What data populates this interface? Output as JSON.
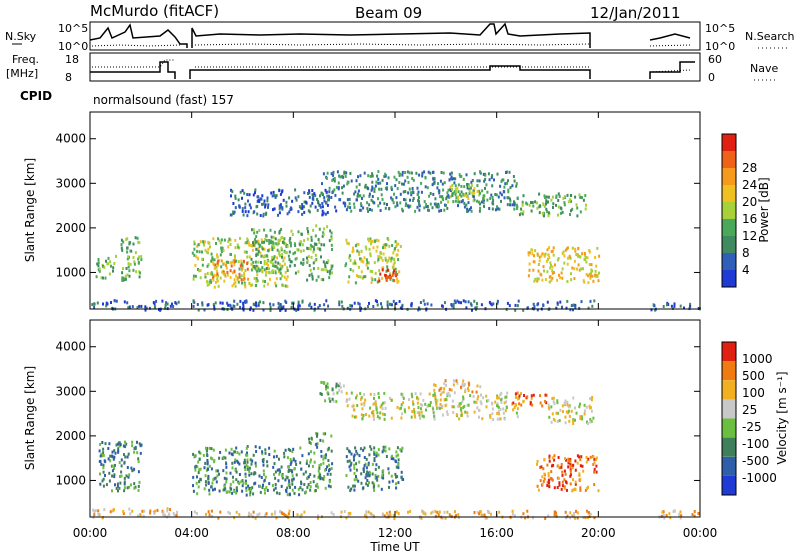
{
  "header": {
    "station": "McMurdo (fitACF)",
    "beam": "Beam 09",
    "date": "12/Jan/2011",
    "cpid_label": "CPID",
    "cpid_value": "normalsound (fast) 157"
  },
  "top_panels": {
    "nsky_label": "N.Sky",
    "nsky_ticks": [
      "10^5",
      "10^0"
    ],
    "nsearch_label": "N.Search",
    "nsearch_ticks": [
      "10^5",
      "10^0"
    ],
    "freq_label_line1": "Freq.",
    "freq_label_line2": "[MHz]",
    "freq_ticks": [
      "18",
      "8"
    ],
    "nave_label": "Nave",
    "nave_ticks": [
      "60",
      "0"
    ]
  },
  "x_axis": {
    "label": "Time UT",
    "ticks": [
      "00:00",
      "04:00",
      "08:00",
      "12:00",
      "16:00",
      "20:00",
      "00:00"
    ]
  },
  "colors": {
    "power": [
      "#1f3bd6",
      "#2f5fb8",
      "#3f8a5f",
      "#4aa85a",
      "#a7d13a",
      "#f0c020",
      "#f59a1a",
      "#ef6018",
      "#e02010"
    ],
    "velocity": [
      "#1f3bd6",
      "#2e5fa8",
      "#3f7f5a",
      "#6bbf40",
      "#c8c8c8",
      "#f0b020",
      "#f07b10",
      "#e02010"
    ]
  },
  "chart_data": [
    {
      "type": "heatmap",
      "panel": "power",
      "ylabel": "Slant Range [km]",
      "yticks": [
        "1000",
        "2000",
        "3000",
        "4000"
      ],
      "colorbar_label": "Power [dB]",
      "colorbar_ticks": [
        "4",
        "8",
        "12",
        "16",
        "20",
        "24",
        "28"
      ],
      "x_range_hours": [
        0,
        24
      ],
      "y_range_km": [
        180,
        4600
      ],
      "regions": [
        {
          "t": [
            1.2,
            2.0
          ],
          "r": [
            850,
            1900
          ],
          "level": 3
        },
        {
          "t": [
            0.2,
            1.0
          ],
          "r": [
            900,
            1400
          ],
          "level": 3
        },
        {
          "t": [
            4.0,
            7.8
          ],
          "r": [
            700,
            1800
          ],
          "level": 4
        },
        {
          "t": [
            4.8,
            6.2
          ],
          "r": [
            850,
            1300
          ],
          "level": 6
        },
        {
          "t": [
            6.3,
            8.4
          ],
          "r": [
            1000,
            2000
          ],
          "level": 3
        },
        {
          "t": [
            8.5,
            9.5
          ],
          "r": [
            800,
            2100
          ],
          "level": 3
        },
        {
          "t": [
            10.0,
            12.2
          ],
          "r": [
            800,
            1800
          ],
          "level": 4
        },
        {
          "t": [
            11.3,
            12.0
          ],
          "r": [
            800,
            1100
          ],
          "level": 8
        },
        {
          "t": [
            5.5,
            10.0
          ],
          "r": [
            2300,
            2900
          ],
          "level": 1
        },
        {
          "t": [
            9.0,
            10.0
          ],
          "r": [
            2800,
            3300
          ],
          "level": 2
        },
        {
          "t": [
            10.0,
            16.8
          ],
          "r": [
            2400,
            3300
          ],
          "level": 2
        },
        {
          "t": [
            14.0,
            15.5
          ],
          "r": [
            2600,
            3000
          ],
          "level": 4
        },
        {
          "t": [
            16.8,
            19.5
          ],
          "r": [
            2300,
            2800
          ],
          "level": 3
        },
        {
          "t": [
            17.2,
            20.0
          ],
          "r": [
            800,
            1600
          ],
          "level": 5
        },
        {
          "t": [
            0.0,
            3.5
          ],
          "r": [
            180,
            400
          ],
          "level": 1
        },
        {
          "t": [
            4.0,
            20.0
          ],
          "r": [
            180,
            400
          ],
          "level": 1
        },
        {
          "t": [
            22.0,
            24.0
          ],
          "r": [
            180,
            350
          ],
          "level": 1
        }
      ]
    },
    {
      "type": "heatmap",
      "panel": "velocity",
      "ylabel": "Slant Range [km]",
      "yticks": [
        "1000",
        "2000",
        "3000",
        "4000"
      ],
      "colorbar_label": "Velocity [m s⁻¹]",
      "colorbar_ticks": [
        "1000",
        "500",
        "100",
        "25",
        "-25",
        "-100",
        "-500",
        "-1000"
      ],
      "x_range_hours": [
        0,
        24
      ],
      "y_range_km": [
        180,
        4600
      ],
      "regions": [
        {
          "t": [
            0.3,
            2.0
          ],
          "r": [
            800,
            1900
          ],
          "level": 2
        },
        {
          "t": [
            4.0,
            8.5
          ],
          "r": [
            700,
            1800
          ],
          "level": 2
        },
        {
          "t": [
            8.5,
            9.5
          ],
          "r": [
            800,
            2100
          ],
          "level": 2
        },
        {
          "t": [
            10.0,
            12.3
          ],
          "r": [
            800,
            1800
          ],
          "level": 2
        },
        {
          "t": [
            9.0,
            10.0
          ],
          "r": [
            2800,
            3300
          ],
          "level": 3
        },
        {
          "t": [
            10.0,
            16.8
          ],
          "r": [
            2400,
            3000
          ],
          "level": 4
        },
        {
          "t": [
            13.5,
            15.5
          ],
          "r": [
            3000,
            3300
          ],
          "level": 5
        },
        {
          "t": [
            16.5,
            18.0
          ],
          "r": [
            2700,
            3000
          ],
          "level": 6
        },
        {
          "t": [
            18.0,
            19.8
          ],
          "r": [
            2300,
            2900
          ],
          "level": 4
        },
        {
          "t": [
            17.5,
            20.0
          ],
          "r": [
            800,
            1600
          ],
          "level": 6
        },
        {
          "t": [
            0.0,
            3.5
          ],
          "r": [
            180,
            400
          ],
          "level": 5
        },
        {
          "t": [
            4.0,
            20.0
          ],
          "r": [
            180,
            350
          ],
          "level": 5
        },
        {
          "t": [
            22.0,
            24.0
          ],
          "r": [
            180,
            350
          ],
          "level": 5
        }
      ]
    }
  ]
}
